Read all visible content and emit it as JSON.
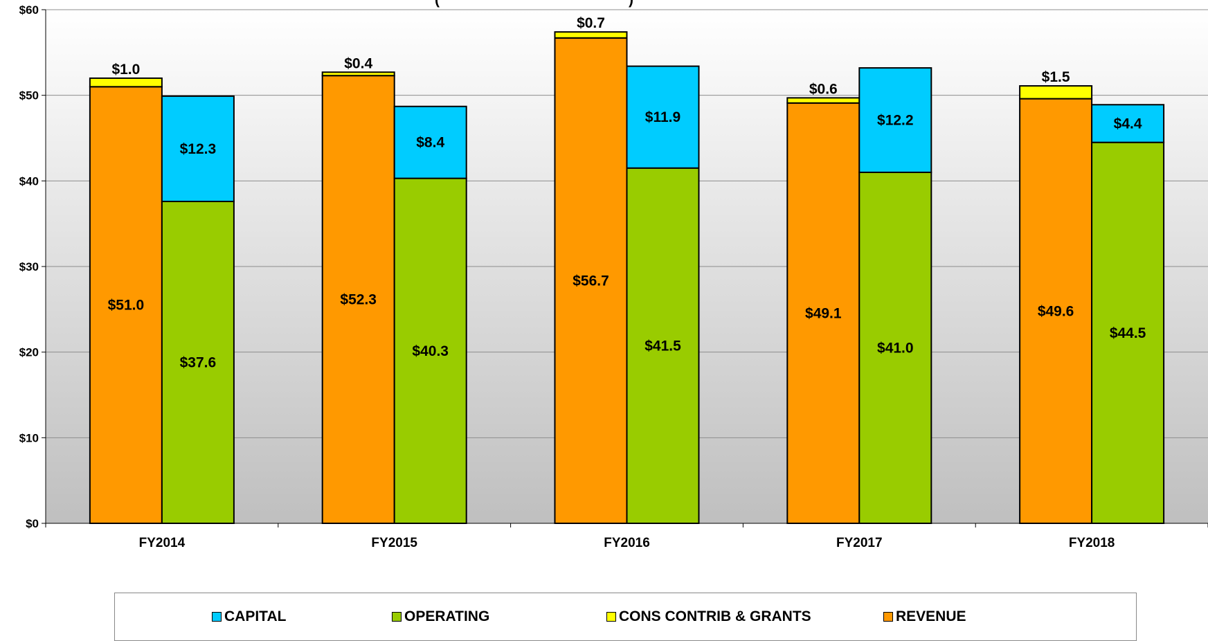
{
  "chart_data": {
    "type": "bar",
    "stacked": true,
    "categories": [
      "FY2014",
      "FY2015",
      "FY2016",
      "FY2017",
      "FY2018"
    ],
    "stacks": {
      "sources": {
        "series": [
          {
            "name": "REVENUE",
            "values": [
              51.0,
              52.3,
              56.7,
              49.1,
              49.6
            ],
            "color": "#FF9900"
          },
          {
            "name": "CONS CONTRIB & GRANTS",
            "values": [
              1.0,
              0.4,
              0.7,
              0.6,
              1.5
            ],
            "color": "#FFFF00"
          }
        ]
      },
      "uses": {
        "series": [
          {
            "name": "OPERATING",
            "values": [
              37.6,
              40.3,
              41.5,
              41.0,
              44.5
            ],
            "color": "#99CC00"
          },
          {
            "name": "CAPITAL",
            "values": [
              12.3,
              8.4,
              11.9,
              12.2,
              4.4
            ],
            "color": "#00CCFF"
          }
        ]
      }
    },
    "data_labels": {
      "REVENUE": [
        "$51.0",
        "$52.3",
        "$56.7",
        "$49.1",
        "$49.6"
      ],
      "CONS CONTRIB & GRANTS": [
        "$1.0",
        "$0.4",
        "$0.7",
        "$0.6",
        "$1.5"
      ],
      "OPERATING": [
        "$37.6",
        "$40.3",
        "$41.5",
        "$41.0",
        "$44.5"
      ],
      "CAPITAL": [
        "$12.3",
        "$8.4",
        "$11.9",
        "$12.2",
        "$4.4"
      ]
    },
    "ylim": [
      0,
      60
    ],
    "y_ticks": [
      0,
      10,
      20,
      30,
      40,
      50,
      60
    ],
    "y_tick_labels": [
      "$0",
      "$10",
      "$20",
      "$30",
      "$40",
      "$50",
      "$60"
    ],
    "grid": true,
    "title_fragment": "(",
    "title_fragment_right": ")",
    "legend_position": "bottom",
    "legend": [
      "CAPITAL",
      "OPERATING",
      "CONS CONTRIB & GRANTS",
      "REVENUE"
    ],
    "colors": {
      "REVENUE": "#FF9900",
      "CONS CONTRIB & GRANTS": "#FFFF00",
      "OPERATING": "#99CC00",
      "CAPITAL": "#00CCFF",
      "plot_bg_top": "#FFFFFF",
      "plot_bg_bottom": "#BFBFBF"
    }
  }
}
